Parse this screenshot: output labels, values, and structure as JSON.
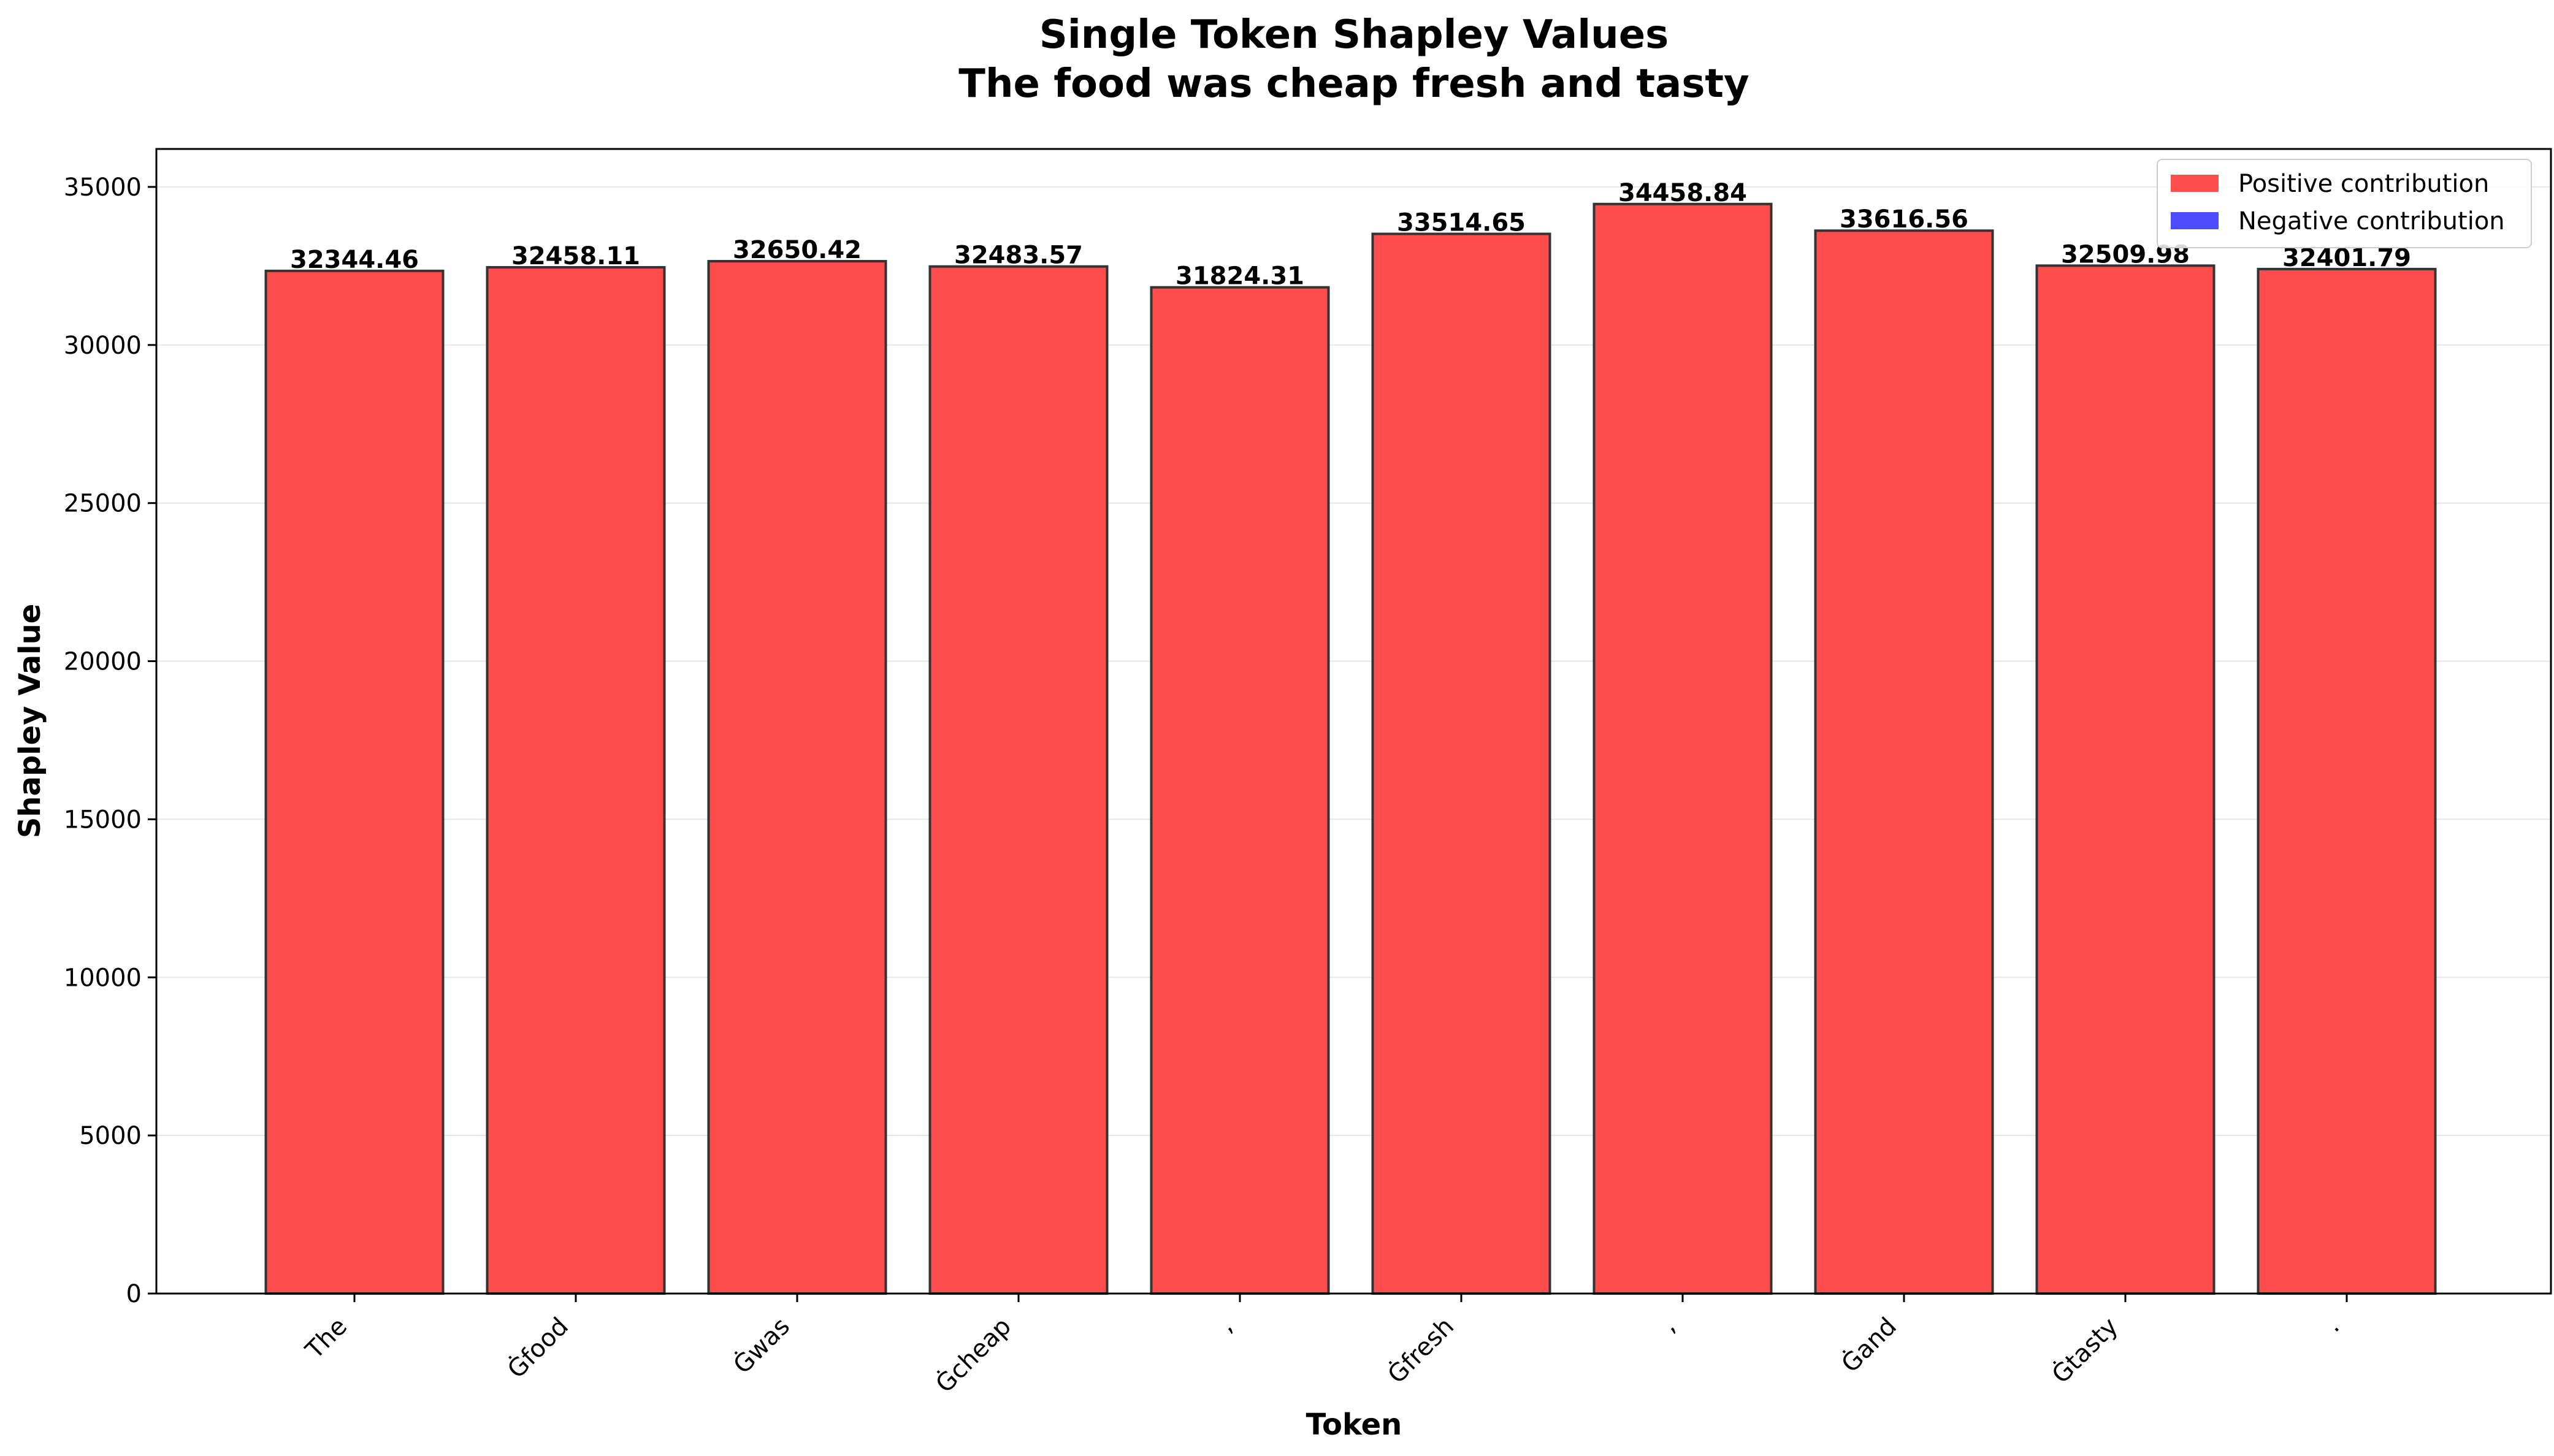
{
  "chart_data": {
    "type": "bar",
    "title": "Single Token Shapley Values",
    "subtitle": "The food was cheap fresh and tasty",
    "xlabel": "Token",
    "ylabel": "Shapley Value",
    "categories": [
      "The",
      "Ġfood",
      "Ġwas",
      "Ġcheap",
      ",",
      "Ġfresh",
      ",",
      "Ġand",
      "Ġtasty",
      "."
    ],
    "values": [
      32344.46,
      32458.11,
      32650.42,
      32483.57,
      31824.31,
      33514.65,
      34458.84,
      33616.56,
      32509.98,
      32401.79
    ],
    "data_labels": [
      "32344.46",
      "32458.11",
      "32650.42",
      "32483.57",
      "31824.31",
      "33514.65",
      "34458.84",
      "33616.56",
      "32509.98",
      "32401.79"
    ],
    "ylim": [
      0,
      36200
    ],
    "yticks": [
      0,
      5000,
      10000,
      15000,
      20000,
      25000,
      30000,
      35000
    ],
    "grid": true,
    "legend": {
      "placement": "top-right",
      "entries": [
        {
          "label": "Positive contribution",
          "color": "#ff4d4d"
        },
        {
          "label": "Negative contribution",
          "color": "#4d4dff"
        }
      ]
    },
    "colors": {
      "positive": "#ff4d4d",
      "negative": "#4d4dff",
      "edge": "#333333",
      "grid": "#e6e6e6"
    }
  }
}
